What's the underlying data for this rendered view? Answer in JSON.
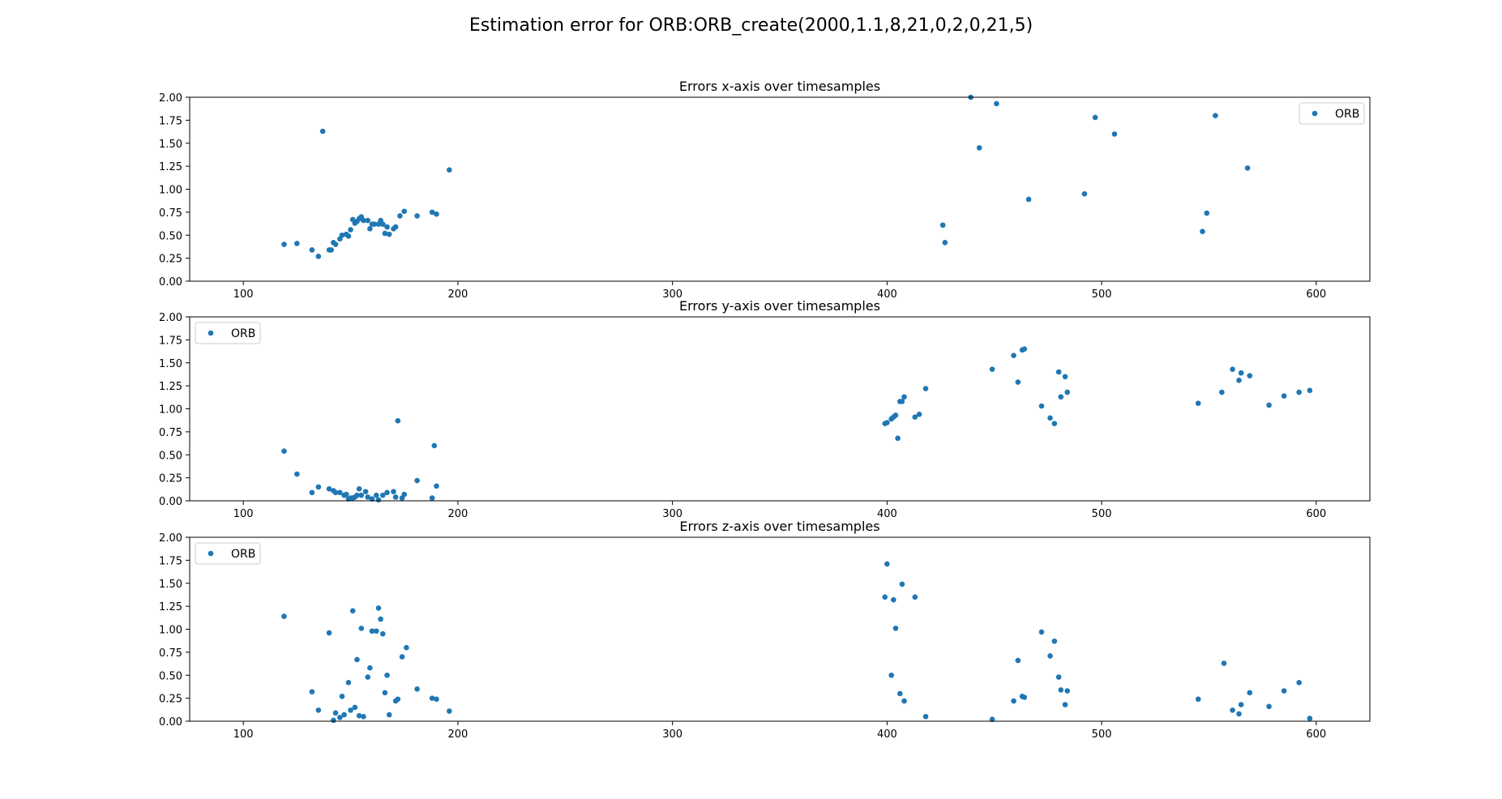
{
  "figure": {
    "suptitle": "Estimation error for ORB:ORB_create(2000,1.1,8,21,0,2,0,21,5)"
  },
  "style": {
    "marker_color": "#1f77b4",
    "axis_color": "#000000",
    "background": "#ffffff"
  },
  "chart_data": [
    {
      "type": "scatter",
      "title": "Errors x-axis over timesamples",
      "xlabel": "",
      "ylabel": "",
      "xlim": [
        75,
        625
      ],
      "ylim": [
        0,
        2
      ],
      "xticks": [
        100,
        200,
        300,
        400,
        500,
        600
      ],
      "yticks": [
        "0.00",
        "0.25",
        "0.50",
        "0.75",
        "1.00",
        "1.25",
        "1.50",
        "1.75",
        "2.00"
      ],
      "grid": false,
      "legend": "top-right",
      "series": [
        {
          "name": "ORB",
          "points": [
            [
              119,
              0.4
            ],
            [
              125,
              0.41
            ],
            [
              132,
              0.34
            ],
            [
              135,
              0.27
            ],
            [
              137,
              1.63
            ],
            [
              140,
              0.34
            ],
            [
              141,
              0.34
            ],
            [
              142,
              0.42
            ],
            [
              143,
              0.4
            ],
            [
              145,
              0.46
            ],
            [
              146,
              0.5
            ],
            [
              148,
              0.51
            ],
            [
              149,
              0.49
            ],
            [
              150,
              0.56
            ],
            [
              151,
              0.67
            ],
            [
              152,
              0.63
            ],
            [
              153,
              0.65
            ],
            [
              154,
              0.68
            ],
            [
              155,
              0.7
            ],
            [
              156,
              0.66
            ],
            [
              158,
              0.66
            ],
            [
              159,
              0.57
            ],
            [
              160,
              0.62
            ],
            [
              161,
              0.62
            ],
            [
              163,
              0.62
            ],
            [
              164,
              0.66
            ],
            [
              165,
              0.62
            ],
            [
              166,
              0.52
            ],
            [
              167,
              0.59
            ],
            [
              168,
              0.51
            ],
            [
              170,
              0.57
            ],
            [
              171,
              0.59
            ],
            [
              173,
              0.71
            ],
            [
              175,
              0.76
            ],
            [
              181,
              0.71
            ],
            [
              188,
              0.75
            ],
            [
              190,
              0.73
            ],
            [
              196,
              1.21
            ],
            [
              426,
              0.61
            ],
            [
              427,
              0.42
            ],
            [
              439,
              2.0
            ],
            [
              443,
              1.45
            ],
            [
              451,
              1.93
            ],
            [
              466,
              0.89
            ],
            [
              492,
              0.95
            ],
            [
              497,
              1.78
            ],
            [
              506,
              1.6
            ],
            [
              547,
              0.54
            ],
            [
              549,
              0.74
            ],
            [
              553,
              1.8
            ],
            [
              568,
              1.23
            ]
          ]
        }
      ]
    },
    {
      "type": "scatter",
      "title": "Errors y-axis over timesamples",
      "xlabel": "",
      "ylabel": "",
      "xlim": [
        75,
        625
      ],
      "ylim": [
        0,
        2
      ],
      "xticks": [
        100,
        200,
        300,
        400,
        500,
        600
      ],
      "yticks": [
        "0.00",
        "0.25",
        "0.50",
        "0.75",
        "1.00",
        "1.25",
        "1.50",
        "1.75",
        "2.00"
      ],
      "grid": false,
      "legend": "top-left",
      "series": [
        {
          "name": "ORB",
          "points": [
            [
              119,
              0.54
            ],
            [
              125,
              0.29
            ],
            [
              132,
              0.09
            ],
            [
              135,
              0.15
            ],
            [
              140,
              0.13
            ],
            [
              142,
              0.11
            ],
            [
              143,
              0.09
            ],
            [
              145,
              0.09
            ],
            [
              147,
              0.06
            ],
            [
              148,
              0.07
            ],
            [
              149,
              0.02
            ],
            [
              150,
              0.03
            ],
            [
              151,
              0.03
            ],
            [
              152,
              0.04
            ],
            [
              153,
              0.06
            ],
            [
              154,
              0.13
            ],
            [
              155,
              0.06
            ],
            [
              157,
              0.1
            ],
            [
              158,
              0.04
            ],
            [
              160,
              0.02
            ],
            [
              162,
              0.06
            ],
            [
              163,
              0.01
            ],
            [
              165,
              0.06
            ],
            [
              167,
              0.09
            ],
            [
              170,
              0.1
            ],
            [
              171,
              0.04
            ],
            [
              172,
              0.87
            ],
            [
              174,
              0.03
            ],
            [
              175,
              0.07
            ],
            [
              181,
              0.22
            ],
            [
              188,
              0.03
            ],
            [
              189,
              0.6
            ],
            [
              190,
              0.16
            ],
            [
              399,
              0.84
            ],
            [
              400,
              0.85
            ],
            [
              402,
              0.89
            ],
            [
              403,
              0.91
            ],
            [
              404,
              0.93
            ],
            [
              405,
              0.68
            ],
            [
              406,
              1.08
            ],
            [
              407,
              1.08
            ],
            [
              408,
              1.13
            ],
            [
              413,
              0.91
            ],
            [
              415,
              0.94
            ],
            [
              418,
              1.22
            ],
            [
              449,
              1.43
            ],
            [
              459,
              1.58
            ],
            [
              461,
              1.29
            ],
            [
              463,
              1.64
            ],
            [
              464,
              1.65
            ],
            [
              472,
              1.03
            ],
            [
              476,
              0.9
            ],
            [
              478,
              0.84
            ],
            [
              480,
              1.4
            ],
            [
              481,
              1.13
            ],
            [
              483,
              1.35
            ],
            [
              484,
              1.18
            ],
            [
              545,
              1.06
            ],
            [
              556,
              1.18
            ],
            [
              561,
              1.43
            ],
            [
              564,
              1.31
            ],
            [
              565,
              1.39
            ],
            [
              569,
              1.36
            ],
            [
              578,
              1.04
            ],
            [
              585,
              1.14
            ],
            [
              592,
              1.18
            ],
            [
              597,
              1.2
            ]
          ]
        }
      ]
    },
    {
      "type": "scatter",
      "title": "Errors z-axis over timesamples",
      "xlabel": "",
      "ylabel": "",
      "xlim": [
        75,
        625
      ],
      "ylim": [
        0,
        2
      ],
      "xticks": [
        100,
        200,
        300,
        400,
        500,
        600
      ],
      "yticks": [
        "0.00",
        "0.25",
        "0.50",
        "0.75",
        "1.00",
        "1.25",
        "1.50",
        "1.75",
        "2.00"
      ],
      "grid": false,
      "legend": "top-left",
      "series": [
        {
          "name": "ORB",
          "points": [
            [
              119,
              1.14
            ],
            [
              132,
              0.32
            ],
            [
              135,
              0.12
            ],
            [
              140,
              0.96
            ],
            [
              142,
              0.01
            ],
            [
              143,
              0.09
            ],
            [
              145,
              0.04
            ],
            [
              146,
              0.27
            ],
            [
              147,
              0.07
            ],
            [
              149,
              0.42
            ],
            [
              150,
              0.12
            ],
            [
              151,
              1.2
            ],
            [
              152,
              0.15
            ],
            [
              153,
              0.67
            ],
            [
              154,
              0.06
            ],
            [
              155,
              1.01
            ],
            [
              156,
              0.05
            ],
            [
              158,
              0.48
            ],
            [
              159,
              0.58
            ],
            [
              160,
              0.98
            ],
            [
              162,
              0.98
            ],
            [
              163,
              1.23
            ],
            [
              164,
              1.11
            ],
            [
              165,
              0.95
            ],
            [
              166,
              0.31
            ],
            [
              167,
              0.5
            ],
            [
              168,
              0.07
            ],
            [
              171,
              0.22
            ],
            [
              172,
              0.24
            ],
            [
              174,
              0.7
            ],
            [
              176,
              0.8
            ],
            [
              181,
              0.35
            ],
            [
              188,
              0.25
            ],
            [
              190,
              0.24
            ],
            [
              196,
              0.11
            ],
            [
              399,
              1.35
            ],
            [
              400,
              1.71
            ],
            [
              402,
              0.5
            ],
            [
              403,
              1.32
            ],
            [
              404,
              1.01
            ],
            [
              406,
              0.3
            ],
            [
              407,
              1.49
            ],
            [
              408,
              0.22
            ],
            [
              413,
              1.35
            ],
            [
              418,
              0.05
            ],
            [
              449,
              0.02
            ],
            [
              459,
              0.22
            ],
            [
              461,
              0.66
            ],
            [
              463,
              0.27
            ],
            [
              464,
              0.26
            ],
            [
              472,
              0.97
            ],
            [
              476,
              0.71
            ],
            [
              478,
              0.87
            ],
            [
              480,
              0.48
            ],
            [
              481,
              0.34
            ],
            [
              483,
              0.18
            ],
            [
              484,
              0.33
            ],
            [
              545,
              0.24
            ],
            [
              557,
              0.63
            ],
            [
              561,
              0.12
            ],
            [
              564,
              0.08
            ],
            [
              565,
              0.18
            ],
            [
              569,
              0.31
            ],
            [
              578,
              0.16
            ],
            [
              585,
              0.33
            ],
            [
              592,
              0.42
            ],
            [
              597,
              0.03
            ]
          ]
        }
      ]
    }
  ]
}
